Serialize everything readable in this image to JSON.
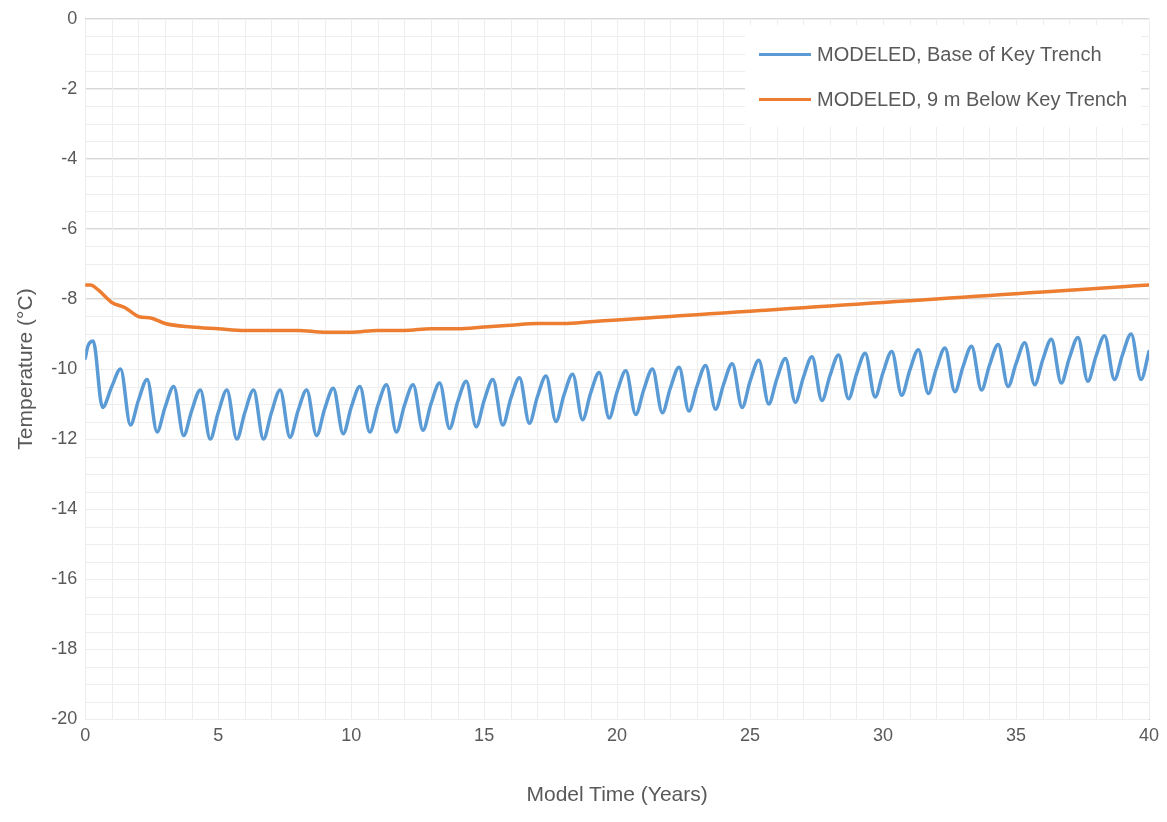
{
  "chart_data": {
    "type": "line",
    "xlabel": "Model Time (Years)",
    "ylabel": "Temperature (°C)",
    "xlim": [
      0,
      40
    ],
    "xticks": [
      0,
      5,
      10,
      15,
      20,
      25,
      30,
      35,
      40
    ],
    "ylim": [
      -20,
      0
    ],
    "yticks": [
      -20,
      -18,
      -16,
      -14,
      -12,
      -10,
      -8,
      -6,
      -4,
      -2,
      0
    ],
    "grid": true,
    "legend": "top right",
    "marker": "none",
    "line_style": "solid",
    "series": [
      {
        "name": "MODELED, Base of Key Trench",
        "color": "#5b9bd5",
        "x": [
          0,
          0.1,
          0.3,
          0.65,
          1,
          1.33,
          1.7,
          2,
          2.33,
          2.7,
          3,
          3.33,
          3.7,
          4,
          4.33,
          4.7,
          5,
          5.33,
          5.7,
          6,
          6.33,
          6.7,
          7,
          7.33,
          7.7,
          8,
          8.33,
          8.7,
          9,
          9.33,
          9.7,
          10,
          10.33,
          10.7,
          11,
          11.33,
          11.7,
          12,
          12.33,
          12.7,
          13,
          13.33,
          13.7,
          14,
          14.33,
          14.7,
          15,
          15.33,
          15.7,
          16,
          16.33,
          16.7,
          17,
          17.33,
          17.7,
          18,
          18.33,
          18.7,
          19,
          19.33,
          19.7,
          20,
          20.33,
          20.7,
          21,
          21.33,
          21.7,
          22,
          22.33,
          22.7,
          23,
          23.33,
          23.7,
          24,
          24.33,
          24.7,
          25,
          25.33,
          25.7,
          26,
          26.33,
          26.7,
          27,
          27.33,
          27.7,
          28,
          28.33,
          28.7,
          29,
          29.33,
          29.7,
          30,
          30.33,
          30.7,
          31,
          31.33,
          31.7,
          32,
          32.33,
          32.7,
          33,
          33.33,
          33.7,
          34,
          34.33,
          34.7,
          35,
          35.33,
          35.7,
          36,
          36.33,
          36.7,
          37,
          37.33,
          37.7,
          38,
          38.33,
          38.7,
          39,
          39.33,
          39.7,
          40
        ],
        "values": [
          -9.7,
          -9.35,
          -9.2,
          -11.1,
          -10.5,
          -10.0,
          -11.6,
          -10.9,
          -10.3,
          -11.8,
          -11.1,
          -10.5,
          -11.9,
          -11.2,
          -10.6,
          -12.0,
          -11.25,
          -10.6,
          -12.0,
          -11.25,
          -10.6,
          -12.0,
          -11.25,
          -10.6,
          -11.95,
          -11.2,
          -10.6,
          -11.9,
          -11.15,
          -10.55,
          -11.85,
          -11.1,
          -10.5,
          -11.8,
          -11.05,
          -10.45,
          -11.8,
          -11.05,
          -10.45,
          -11.75,
          -11.0,
          -10.4,
          -11.7,
          -10.95,
          -10.35,
          -11.65,
          -10.9,
          -10.3,
          -11.6,
          -10.85,
          -10.25,
          -11.55,
          -10.8,
          -10.2,
          -11.5,
          -10.75,
          -10.15,
          -11.45,
          -10.7,
          -10.1,
          -11.4,
          -10.65,
          -10.05,
          -11.3,
          -10.6,
          -10.0,
          -11.25,
          -10.55,
          -9.95,
          -11.2,
          -10.5,
          -9.9,
          -11.15,
          -10.45,
          -9.85,
          -11.1,
          -10.35,
          -9.75,
          -11.0,
          -10.3,
          -9.7,
          -10.95,
          -10.25,
          -9.65,
          -10.9,
          -10.2,
          -9.6,
          -10.85,
          -10.15,
          -9.55,
          -10.8,
          -10.1,
          -9.5,
          -10.75,
          -10.05,
          -9.45,
          -10.7,
          -10.0,
          -9.4,
          -10.65,
          -9.95,
          -9.35,
          -10.6,
          -9.9,
          -9.3,
          -10.5,
          -9.85,
          -9.25,
          -10.45,
          -9.75,
          -9.15,
          -10.4,
          -9.7,
          -9.1,
          -10.35,
          -9.65,
          -9.05,
          -10.3,
          -9.6,
          -9.0,
          -10.3,
          -9.5
        ]
      },
      {
        "name": "MODELED, 9 m Below Key Trench",
        "color": "#ed7d31",
        "x": [
          0,
          0.2,
          0.5,
          1,
          1.5,
          2,
          2.5,
          3,
          4,
          5,
          6,
          7,
          8,
          9,
          10,
          11,
          12,
          13,
          14,
          15,
          16,
          17,
          18,
          19,
          20,
          21,
          22,
          23,
          24,
          25,
          26,
          27,
          28,
          29,
          30,
          31,
          32,
          33,
          34,
          35,
          36,
          37,
          38,
          39,
          40
        ],
        "values": [
          -7.6,
          -7.6,
          -7.75,
          -8.1,
          -8.25,
          -8.5,
          -8.55,
          -8.7,
          -8.8,
          -8.85,
          -8.9,
          -8.9,
          -8.9,
          -8.95,
          -8.95,
          -8.9,
          -8.9,
          -8.85,
          -8.85,
          -8.8,
          -8.75,
          -8.7,
          -8.7,
          -8.65,
          -8.6,
          -8.55,
          -8.5,
          -8.45,
          -8.4,
          -8.35,
          -8.3,
          -8.25,
          -8.2,
          -8.15,
          -8.1,
          -8.05,
          -8.0,
          -7.95,
          -7.9,
          -7.85,
          -7.8,
          -7.75,
          -7.7,
          -7.65,
          -7.6
        ]
      }
    ]
  }
}
